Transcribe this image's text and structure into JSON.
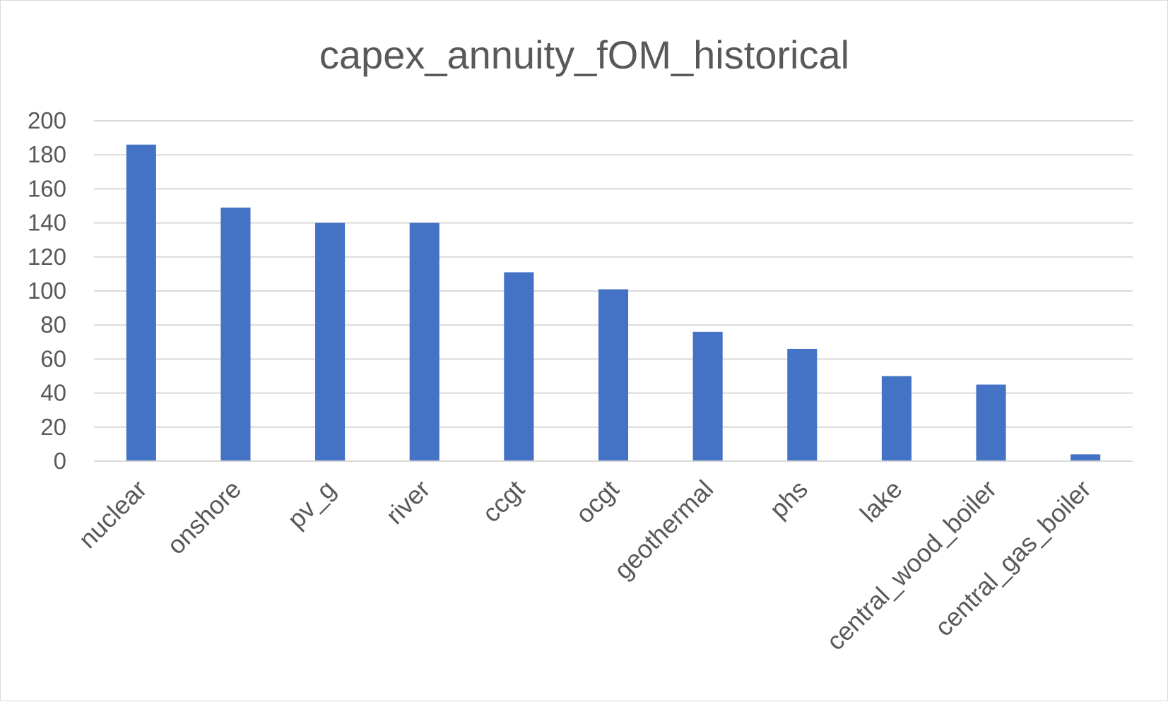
{
  "chart_data": {
    "type": "bar",
    "title": "capex_annuity_fOM_historical",
    "xlabel": "",
    "ylabel": "",
    "categories": [
      "nuclear",
      "onshore",
      "pv_g",
      "river",
      "ccgt",
      "ocgt",
      "geothermal",
      "phs",
      "lake",
      "central_wood_boiler",
      "central_gas_boiler"
    ],
    "series": [
      {
        "values": [
          186,
          149,
          140,
          140,
          111,
          101,
          76,
          66,
          50,
          45,
          4
        ],
        "color": "#4472c4"
      }
    ],
    "ylim": [
      0,
      200
    ],
    "yticks": [
      0,
      20,
      40,
      60,
      80,
      100,
      120,
      140,
      160,
      180,
      200
    ],
    "grid": true,
    "legend": "none"
  }
}
